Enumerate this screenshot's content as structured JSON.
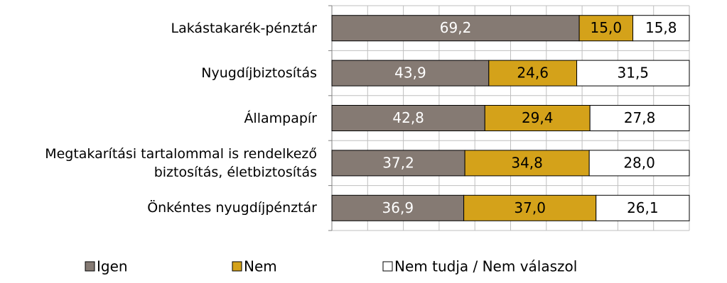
{
  "chart_data": {
    "type": "stacked-barh",
    "categories": [
      "Lakástakarék-pénztár",
      "Nyugdíjbiztosítás",
      "Állampapír",
      "Megtakarítási tartalommal is rendelkező biztosítás, életbiztosítás",
      "Önkéntes nyugdíjpénztár"
    ],
    "series": [
      {
        "name": "Igen",
        "color": "#857a73",
        "values": [
          69.2,
          43.9,
          42.8,
          37.2,
          36.9
        ],
        "value_labels": [
          "69,2",
          "43,9",
          "42,8",
          "37,2",
          "36,9"
        ]
      },
      {
        "name": "Nem",
        "color": "#d4a21a",
        "values": [
          15.0,
          24.6,
          29.4,
          34.8,
          37.0
        ],
        "value_labels": [
          "15,0",
          "24,6",
          "29,4",
          "34,8",
          "37,0"
        ]
      },
      {
        "name": "Nem tudja / Nem válaszol",
        "color": "#ffffff",
        "values": [
          15.8,
          31.5,
          27.8,
          28.0,
          26.1
        ],
        "value_labels": [
          "15,8",
          "31,5",
          "27,8",
          "28,0",
          "26,1"
        ]
      }
    ],
    "xlim": [
      0,
      100
    ],
    "xticks": [
      0,
      10,
      20,
      30,
      40,
      50,
      60,
      70,
      80,
      90,
      100
    ],
    "grid": true
  }
}
